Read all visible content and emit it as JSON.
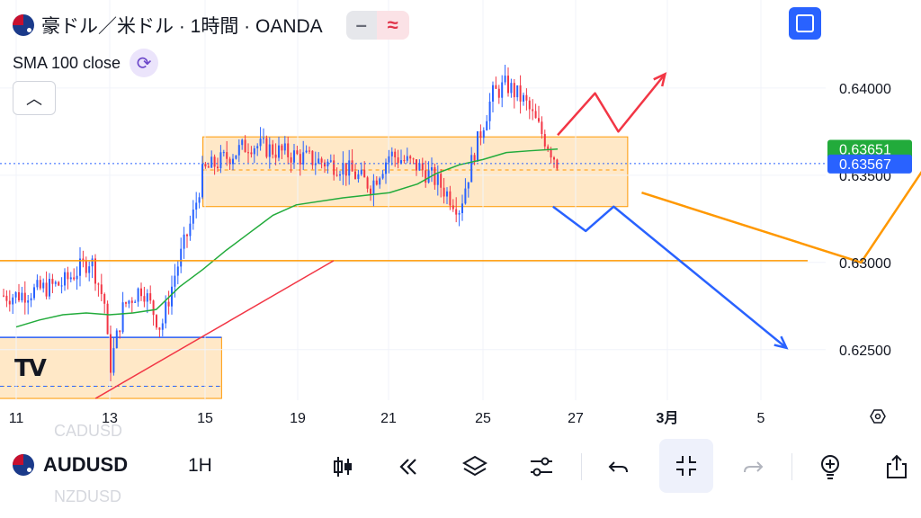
{
  "header": {
    "title": "豪ドル／米ドル · 1時間 · OANDA",
    "indicator": "SMA 100 close",
    "pill_left_icon": "minus-icon",
    "pill_right_icon": "approx-icon",
    "fullscreen_icon": "fullscreen-icon",
    "collapse_icon": "chevron-up-icon"
  },
  "chart_data": {
    "type": "candlestick",
    "title": "豪ドル／米ドル · 1時間 · OANDA",
    "indicator": "SMA 100 close",
    "x_ticks": [
      "11",
      "13",
      "15",
      "19",
      "21",
      "25",
      "27",
      "3月",
      "5"
    ],
    "y_ticks": [
      "0.64000",
      "0.63500",
      "0.63000",
      "0.62500"
    ],
    "ylim": [
      0.6221,
      0.6435
    ],
    "price_labels": [
      {
        "text": "0.63651",
        "value": 0.63651,
        "color": "#22ab3b"
      },
      {
        "text": "0.63567",
        "value": 0.63567,
        "color": "#2962ff"
      }
    ],
    "close_path": [
      [
        "11",
        0.6281
      ],
      [
        "12",
        0.6288
      ],
      [
        "12.6",
        0.6302
      ],
      [
        "12.9",
        0.6276
      ],
      [
        "13",
        0.6238
      ],
      [
        "13.3",
        0.6275
      ],
      [
        "13.7",
        0.6286
      ],
      [
        "14.1",
        0.6262
      ],
      [
        "14.4",
        0.6293
      ],
      [
        "14.8",
        0.6328
      ],
      [
        "15",
        0.6352
      ],
      [
        "15.3",
        0.6357
      ],
      [
        "16",
        0.6368
      ],
      [
        "17",
        0.6361
      ],
      [
        "18",
        0.6355
      ],
      [
        "18.6",
        0.6344
      ],
      [
        "19",
        0.6362
      ],
      [
        "19.6",
        0.6355
      ],
      [
        "20",
        0.6347
      ],
      [
        "20.5",
        0.6331
      ],
      [
        "20.8",
        0.6362
      ],
      [
        "21",
        0.6379
      ],
      [
        "21.2",
        0.6396
      ],
      [
        "21.5",
        0.6402
      ],
      [
        "21.9",
        0.6392
      ],
      [
        "22.3",
        0.6372
      ],
      [
        "22.6",
        0.6357
      ]
    ],
    "sma": [
      [
        "11",
        0.6263
      ],
      [
        "11.5",
        0.6267
      ],
      [
        "12",
        0.627
      ],
      [
        "12.5",
        0.6271
      ],
      [
        "13",
        0.627
      ],
      [
        "13.5",
        0.6271
      ],
      [
        "14",
        0.6273
      ],
      [
        "14.5",
        0.6286
      ],
      [
        "15",
        0.6296
      ],
      [
        "15.5",
        0.6307
      ],
      [
        "16",
        0.6317
      ],
      [
        "16.5",
        0.6327
      ],
      [
        "17",
        0.6333
      ],
      [
        "18",
        0.6337
      ],
      [
        "19",
        0.634
      ],
      [
        "19.6",
        0.6345
      ],
      [
        "20",
        0.6351
      ],
      [
        "20.5",
        0.6356
      ],
      [
        "21",
        0.6359
      ],
      [
        "21.5",
        0.6363
      ],
      [
        "22",
        0.6364
      ],
      [
        "22.6",
        0.6365
      ]
    ],
    "zones": [
      {
        "x_from": "15",
        "x_to": "24.1",
        "y_from": 0.6332,
        "y_to": 0.6372,
        "mid": 0.6353
      },
      {
        "x_from": "9.9",
        "x_to": "15.4",
        "y_from": 0.6222,
        "y_to": 0.6257,
        "mid": 0.6229
      }
    ],
    "hlines": [
      {
        "value": 0.6301,
        "color": "#ff9800"
      },
      {
        "value": 0.63567,
        "color": "#2962ff",
        "style": "dotted"
      }
    ],
    "trendline": {
      "from": [
        "12.7",
        0.6222
      ],
      "to": [
        "17.8",
        0.6301
      ],
      "color": "#f23645"
    },
    "arrows": [
      {
        "color": "#f23645",
        "path": [
          [
            "22.6",
            0.6373
          ],
          [
            "23.4",
            0.6397
          ],
          [
            "23.9",
            0.6375
          ],
          [
            "24.9",
            0.6408
          ]
        ]
      },
      {
        "color": "#2962ff",
        "path": [
          [
            "22.5",
            0.6332
          ],
          [
            "23.2",
            0.6318
          ],
          [
            "23.8",
            0.6332
          ],
          [
            "27.5",
            0.6251
          ]
        ]
      },
      {
        "color": "#ff9800",
        "path": [
          [
            "24.4",
            0.634
          ],
          [
            "29.1",
            0.63
          ],
          [
            "30.9",
            0.6372
          ]
        ]
      }
    ]
  },
  "toolbar": {
    "ghost_top": "CADUSD",
    "ghost_bottom": "NZDUSD",
    "symbol": "AUDUSD",
    "timeframe": "1H",
    "icons": [
      "candles-icon",
      "replay-icon",
      "layers-icon",
      "settings-sliders-icon",
      "undo-icon",
      "collapse-icon",
      "redo-icon",
      "alert-add-icon",
      "share-icon"
    ]
  }
}
